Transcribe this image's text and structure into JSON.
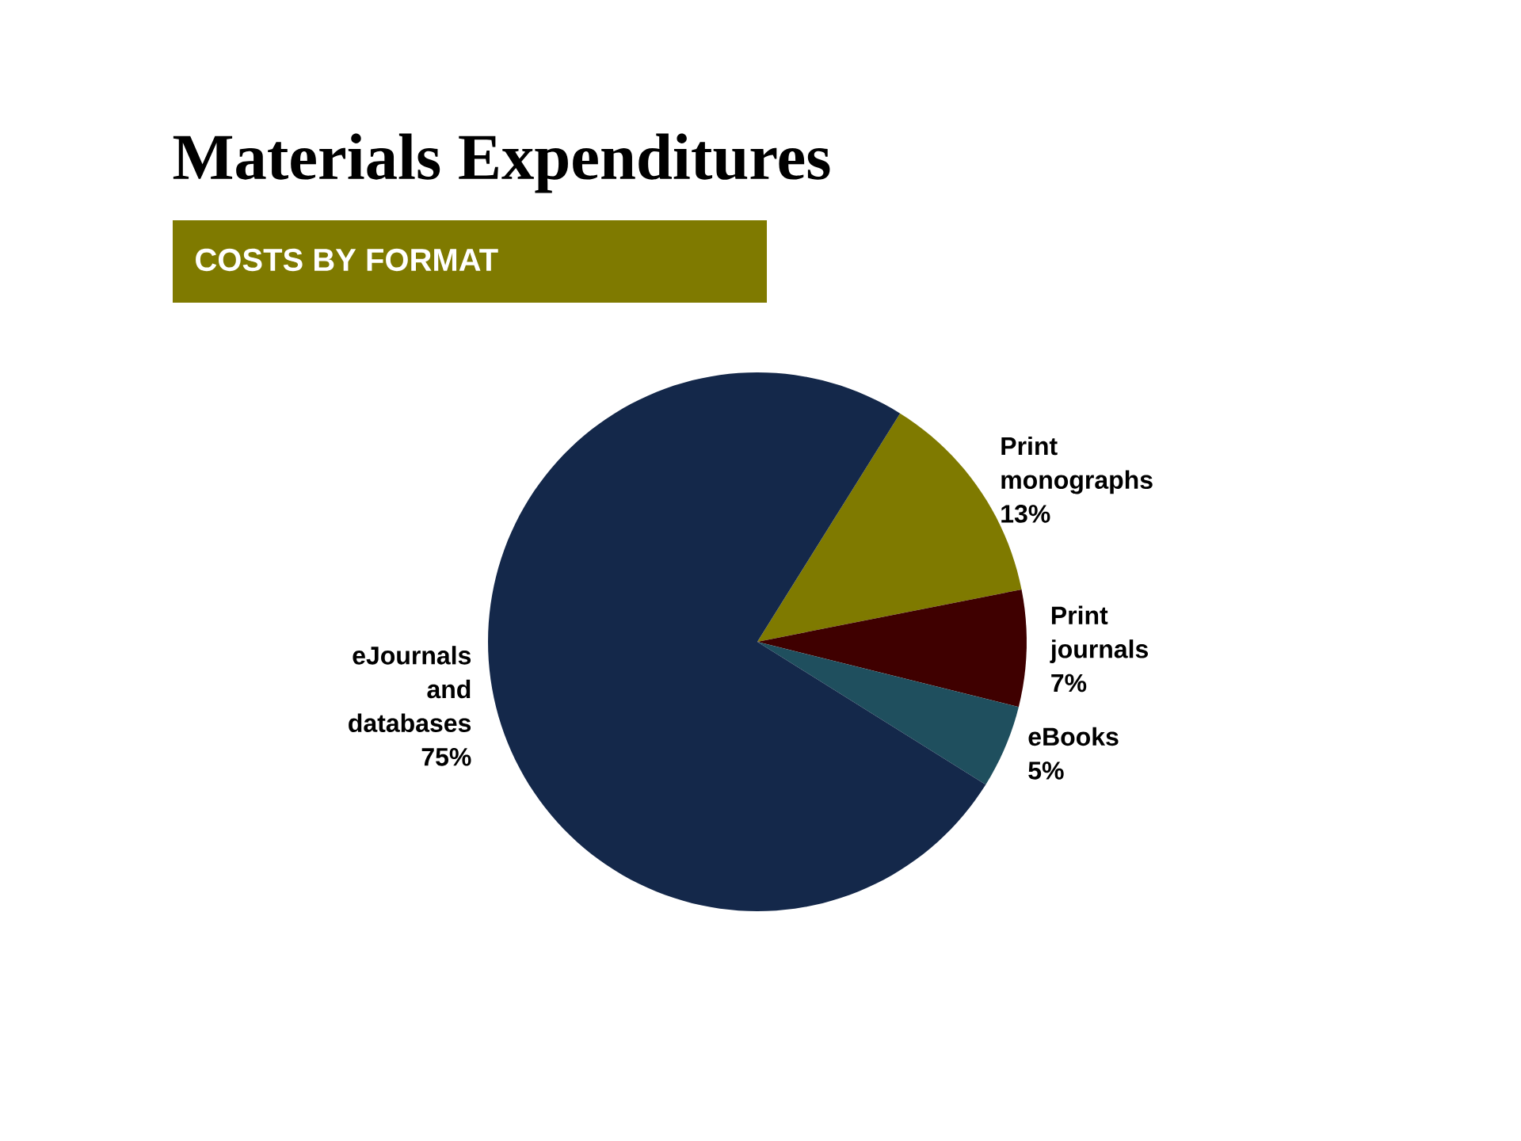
{
  "chart_data": {
    "type": "pie",
    "title": "Materials Expenditures",
    "subtitle": "COSTS BY FORMAT",
    "categories": [
      "Print monographs",
      "Print journals",
      "eBooks",
      "eJournals and databases"
    ],
    "values": [
      13,
      7,
      5,
      75
    ],
    "value_labels": [
      "13%",
      "7%",
      "5%",
      "75%"
    ],
    "colors": [
      "#7f7a00",
      "#3f0000",
      "#1f4f5e",
      "#14284a"
    ]
  }
}
